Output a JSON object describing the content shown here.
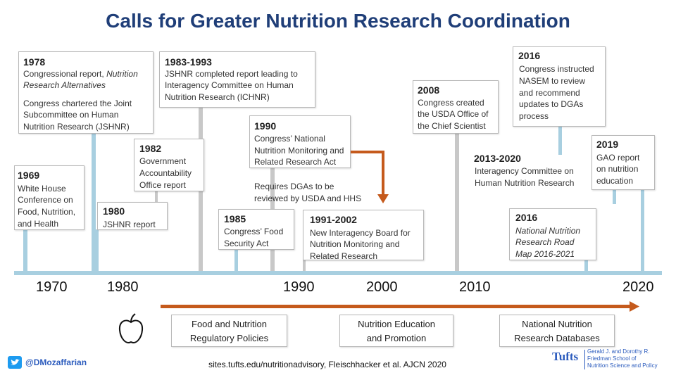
{
  "title": "Calls for Greater Nutrition Research Coordination",
  "events": {
    "e1978": {
      "year": "1978",
      "line1": "Congressional report,",
      "line1_italic": "Nutrition",
      "line2": "Research Alternatives",
      "line3": "Congress chartered the Joint",
      "line4": "Subcommittee on Human",
      "line5": "Nutrition Research (JSHNR)"
    },
    "e1983": {
      "year": "1983-1993",
      "line1": "JSHNR completed report leading to",
      "line2": "Interagency Committee on Human",
      "line3": "Nutrition Research (ICHNR)"
    },
    "e2016a": {
      "year": "2016",
      "line1": "Congress instructed",
      "line2": "NASEM to review",
      "line3": "and recommend",
      "line4": "updates to DGAs",
      "line5": "process"
    },
    "e2008": {
      "year": "2008",
      "line1": "Congress created",
      "line2": "the USDA Office of",
      "line3": "the Chief Scientist"
    },
    "e1990": {
      "year": "1990",
      "line1": "Congress’ National",
      "line2": "Nutrition Monitoring and",
      "line3": "Related Research Act",
      "line4": "Requires DGAs to be",
      "line5": "reviewed by USDA and HHS"
    },
    "e1982": {
      "year": "1982",
      "line1": "Government",
      "line2": "Accountability",
      "line3": "Office report"
    },
    "e1969": {
      "year": "1969",
      "line1": "White House",
      "line2": "Conference on",
      "line3": "Food, Nutrition,",
      "line4": "and Health"
    },
    "e1980": {
      "year": "1980",
      "line1": "JSHNR report"
    },
    "e1985": {
      "year": "1985",
      "line1": "Congress’ Food",
      "line2": "Security Act"
    },
    "e1991": {
      "year": "1991-2002",
      "line1": "New Interagency Board for",
      "line2": "Nutrition Monitoring and",
      "line3": "Related Research"
    },
    "e2013": {
      "year": "2013-2020",
      "line1": "Interagency Committee on",
      "line2": "Human Nutrition Research"
    },
    "e2019": {
      "year": "2019",
      "line1": "GAO report",
      "line2": "on nutrition",
      "line3": "education"
    },
    "e2016b": {
      "year": "2016",
      "line1": "National Nutrition",
      "line2": "Research Road",
      "line3": "Map 2016-2021"
    }
  },
  "axis": {
    "labels": [
      "1970",
      "1980",
      "1990",
      "2000",
      "2010",
      "2020"
    ]
  },
  "bottom_boxes": {
    "b1": {
      "line1": "Food and Nutrition",
      "line2": "Regulatory Policies"
    },
    "b2": {
      "line1": "Nutrition Education",
      "line2": "and Promotion"
    },
    "b3": {
      "line1": "National Nutrition",
      "line2": "Research Databases"
    }
  },
  "footer": {
    "source": "sites.tufts.edu/nutritionadvisory, Fleischhacker et al. AJCN 2020",
    "twitter": "@DMozaffarian",
    "tufts_wordmark": "Tufts",
    "school_line1": "Gerald J. and Dorothy R.",
    "school_line2": "Friedman School of",
    "school_line3": "Nutrition Science and Policy"
  },
  "colors": {
    "title": "#1f3e78",
    "arrow": "#c55a1c",
    "timeline": "#a8cfe0",
    "connector_gray": "#c8c8c8"
  },
  "icons": {
    "apple": "apple-icon",
    "twitter": "twitter-icon"
  }
}
